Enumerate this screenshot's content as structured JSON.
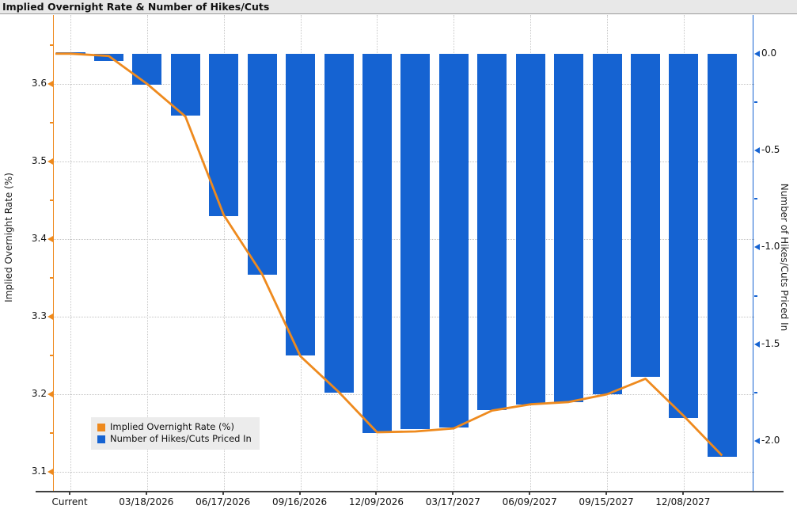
{
  "window": {
    "title": "Implied Overnight Rate & Number of Hikes/Cuts"
  },
  "chart_data": {
    "type": "bar+line",
    "title": "Implied Overnight Rate & Number of Hikes/Cuts",
    "x_slot_count": 18,
    "x_tick_labels": [
      "Current",
      "03/18/2026",
      "06/17/2026",
      "09/16/2026",
      "12/09/2026",
      "03/17/2027",
      "06/09/2027",
      "09/15/2027",
      "12/08/2027"
    ],
    "x_tick_indices": [
      0,
      2,
      4,
      6,
      8,
      10,
      12,
      14,
      16
    ],
    "grid": true,
    "left_axis": {
      "label": "Implied Overnight Rate (%)",
      "tick_labels": [
        "3.6",
        "3.5",
        "3.4",
        "3.3",
        "3.2",
        "3.1"
      ],
      "tick_values": [
        3.6,
        3.5,
        3.4,
        3.3,
        3.2,
        3.1
      ],
      "minor_tick_values": [
        3.65,
        3.55,
        3.45,
        3.35,
        3.25,
        3.15
      ],
      "range_top_to_bottom": [
        3.689,
        3.074
      ],
      "color": "#ee8a1e"
    },
    "right_axis": {
      "label": "Number of Hikes/Cuts Priced In",
      "tick_labels": [
        "0.0",
        "-0.5",
        "-1.0",
        "-1.5",
        "-2.0"
      ],
      "tick_values": [
        0.0,
        -0.5,
        -1.0,
        -1.5,
        -2.0
      ],
      "minor_tick_values": [
        -0.25,
        -0.75,
        -1.25,
        -1.75
      ],
      "range_top_to_bottom": [
        0.198,
        -2.261
      ],
      "color": "#1563d2"
    },
    "series": [
      {
        "name": "Implied Overnight Rate (%)",
        "type": "line",
        "axis": "left",
        "color": "#ee8a1e",
        "values": [
          3.639,
          3.636,
          3.6,
          3.558,
          3.431,
          3.355,
          3.249,
          3.203,
          3.151,
          3.152,
          3.156,
          3.179,
          3.187,
          3.19,
          3.2,
          3.22,
          3.172,
          3.121
        ]
      },
      {
        "name": "Number of Hikes/Cuts Priced In",
        "type": "bar",
        "axis": "right",
        "color": "#1563d2",
        "values": [
          0.0,
          -0.04,
          -0.16,
          -0.32,
          -0.84,
          -1.14,
          -1.56,
          -1.75,
          -1.96,
          -1.94,
          -1.93,
          -1.84,
          -1.81,
          -1.8,
          -1.76,
          -1.67,
          -1.88,
          -2.08
        ]
      }
    ],
    "legend": {
      "position": "bottom-left",
      "entries": [
        {
          "label": "Implied Overnight Rate (%)",
          "color": "#ee8a1e"
        },
        {
          "label": "Number of Hikes/Cuts Priced In",
          "color": "#1563d2"
        }
      ]
    }
  }
}
